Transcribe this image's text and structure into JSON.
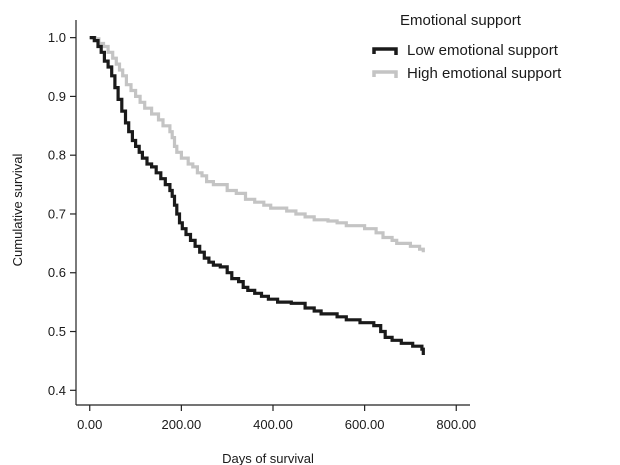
{
  "chart_data": {
    "type": "line",
    "step": true,
    "xlabel": "Days of survival",
    "ylabel": "Cumulative survival",
    "xlim": [
      -30,
      830
    ],
    "ylim": [
      0.375,
      1.03
    ],
    "xticks": [
      0,
      200,
      400,
      600,
      800
    ],
    "xtick_labels": [
      "0.00",
      "200.00",
      "400.00",
      "600.00",
      "800.00"
    ],
    "yticks": [
      0.4,
      0.5,
      0.6,
      0.7,
      0.8,
      0.9,
      1.0
    ],
    "ytick_labels": [
      "0.4",
      "0.5",
      "0.6",
      "0.7",
      "0.8",
      "0.9",
      "1.0"
    ],
    "grid": false,
    "legend": {
      "title": "Emotional support",
      "position": "top-right"
    },
    "series": [
      {
        "name": "Low emotional support",
        "color": "#1a1a1a",
        "points": [
          [
            0,
            1.0
          ],
          [
            10,
            0.995
          ],
          [
            18,
            0.985
          ],
          [
            25,
            0.975
          ],
          [
            32,
            0.96
          ],
          [
            40,
            0.95
          ],
          [
            48,
            0.935
          ],
          [
            55,
            0.915
          ],
          [
            62,
            0.895
          ],
          [
            70,
            0.875
          ],
          [
            78,
            0.855
          ],
          [
            85,
            0.84
          ],
          [
            93,
            0.825
          ],
          [
            100,
            0.815
          ],
          [
            108,
            0.805
          ],
          [
            115,
            0.795
          ],
          [
            125,
            0.785
          ],
          [
            135,
            0.78
          ],
          [
            145,
            0.77
          ],
          [
            155,
            0.76
          ],
          [
            165,
            0.75
          ],
          [
            175,
            0.74
          ],
          [
            180,
            0.73
          ],
          [
            185,
            0.715
          ],
          [
            190,
            0.7
          ],
          [
            196,
            0.685
          ],
          [
            202,
            0.675
          ],
          [
            210,
            0.665
          ],
          [
            220,
            0.655
          ],
          [
            230,
            0.645
          ],
          [
            240,
            0.635
          ],
          [
            250,
            0.625
          ],
          [
            260,
            0.618
          ],
          [
            270,
            0.613
          ],
          [
            285,
            0.61
          ],
          [
            300,
            0.6
          ],
          [
            310,
            0.59
          ],
          [
            325,
            0.585
          ],
          [
            335,
            0.575
          ],
          [
            345,
            0.57
          ],
          [
            360,
            0.565
          ],
          [
            375,
            0.56
          ],
          [
            390,
            0.555
          ],
          [
            410,
            0.55
          ],
          [
            440,
            0.548
          ],
          [
            470,
            0.54
          ],
          [
            490,
            0.535
          ],
          [
            505,
            0.53
          ],
          [
            540,
            0.525
          ],
          [
            560,
            0.52
          ],
          [
            590,
            0.515
          ],
          [
            620,
            0.51
          ],
          [
            635,
            0.5
          ],
          [
            645,
            0.49
          ],
          [
            660,
            0.485
          ],
          [
            680,
            0.48
          ],
          [
            705,
            0.475
          ],
          [
            725,
            0.47
          ],
          [
            728,
            0.46
          ]
        ]
      },
      {
        "name": "High emotional support",
        "color": "#c4c4c4",
        "points": [
          [
            0,
            1.0
          ],
          [
            12,
            0.998
          ],
          [
            20,
            0.99
          ],
          [
            30,
            0.985
          ],
          [
            40,
            0.975
          ],
          [
            50,
            0.965
          ],
          [
            58,
            0.955
          ],
          [
            65,
            0.945
          ],
          [
            72,
            0.935
          ],
          [
            80,
            0.92
          ],
          [
            90,
            0.91
          ],
          [
            100,
            0.9
          ],
          [
            110,
            0.89
          ],
          [
            120,
            0.88
          ],
          [
            135,
            0.87
          ],
          [
            150,
            0.86
          ],
          [
            160,
            0.85
          ],
          [
            175,
            0.84
          ],
          [
            180,
            0.83
          ],
          [
            185,
            0.815
          ],
          [
            190,
            0.805
          ],
          [
            200,
            0.795
          ],
          [
            215,
            0.785
          ],
          [
            225,
            0.78
          ],
          [
            235,
            0.77
          ],
          [
            245,
            0.765
          ],
          [
            255,
            0.755
          ],
          [
            270,
            0.75
          ],
          [
            300,
            0.74
          ],
          [
            320,
            0.735
          ],
          [
            340,
            0.725
          ],
          [
            360,
            0.72
          ],
          [
            380,
            0.715
          ],
          [
            395,
            0.71
          ],
          [
            430,
            0.705
          ],
          [
            450,
            0.7
          ],
          [
            470,
            0.695
          ],
          [
            490,
            0.69
          ],
          [
            520,
            0.688
          ],
          [
            540,
            0.685
          ],
          [
            560,
            0.68
          ],
          [
            600,
            0.675
          ],
          [
            625,
            0.668
          ],
          [
            640,
            0.66
          ],
          [
            660,
            0.655
          ],
          [
            670,
            0.65
          ],
          [
            700,
            0.645
          ],
          [
            720,
            0.64
          ],
          [
            728,
            0.635
          ]
        ]
      }
    ]
  }
}
